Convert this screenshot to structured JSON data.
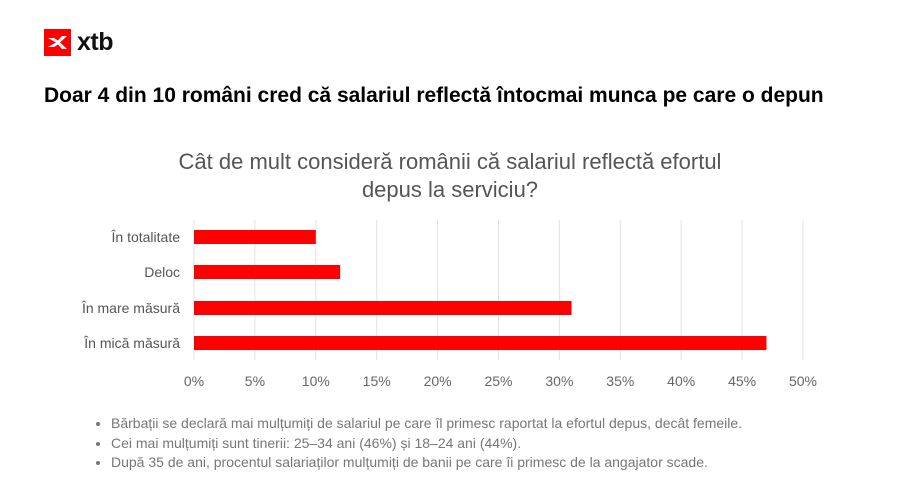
{
  "brand": {
    "name": "xtb",
    "logo_color": "#ff0000"
  },
  "headline": "Doar 4 din 10 români cred că salariul reflectă întocmai munca pe care o depun",
  "chart_data": {
    "type": "bar",
    "orientation": "horizontal",
    "title_line1": "Cât de mult consideră românii că salariul reflectă efortul",
    "title_line2": "depus la serviciu?",
    "categories": [
      "În totalitate",
      "Deloc",
      "În mare măsură",
      "În mică măsură"
    ],
    "values": [
      10,
      12,
      31,
      47
    ],
    "unit": "%",
    "xlim": [
      0,
      50
    ],
    "ticks": [
      "0%",
      "5%",
      "10%",
      "15%",
      "20%",
      "25%",
      "30%",
      "35%",
      "40%",
      "45%",
      "50%"
    ],
    "grid": true,
    "bar_color": "#ff0000"
  },
  "notes": [
    "Bărbații se declară mai mulțumiți de salariul pe care îl primesc raportat la efortul depus, decât femeile.",
    "Cei mai mulțumiți sunt tinerii: 25–34 ani (46%) și 18–24 ani (44%).",
    "După 35 de ani, procentul salariaților mulțumiți de banii pe care îi primesc de la angajator scade."
  ]
}
